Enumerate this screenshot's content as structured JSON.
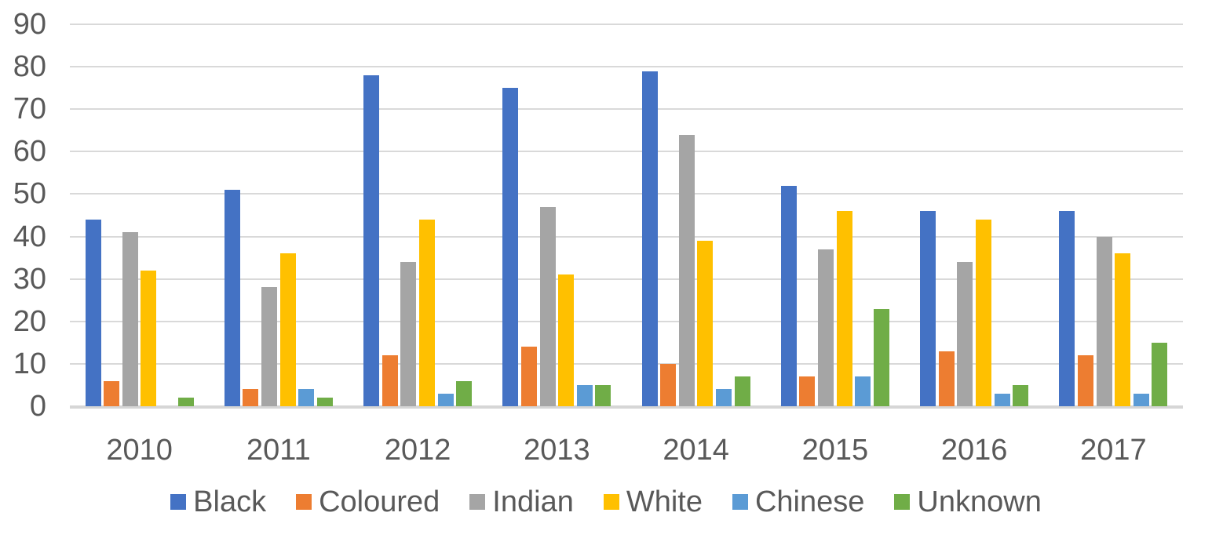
{
  "chart_data": {
    "type": "bar",
    "title": "",
    "xlabel": "",
    "ylabel": "",
    "categories": [
      "2010",
      "2011",
      "2012",
      "2013",
      "2014",
      "2015",
      "2016",
      "2017"
    ],
    "series": [
      {
        "name": "Black",
        "color": "#4472C4",
        "values": [
          44,
          51,
          78,
          75,
          79,
          52,
          46,
          46
        ]
      },
      {
        "name": "Coloured",
        "color": "#ED7D31",
        "values": [
          6,
          4,
          12,
          14,
          10,
          7,
          13,
          12
        ]
      },
      {
        "name": "Indian",
        "color": "#A5A5A5",
        "values": [
          41,
          28,
          34,
          47,
          64,
          37,
          34,
          40
        ]
      },
      {
        "name": "White",
        "color": "#FFC000",
        "values": [
          32,
          36,
          44,
          31,
          39,
          46,
          44,
          36
        ]
      },
      {
        "name": "Chinese",
        "color": "#5B9BD5",
        "values": [
          0,
          4,
          3,
          5,
          4,
          7,
          3,
          3
        ]
      },
      {
        "name": "Unknown",
        "color": "#70AD47",
        "values": [
          2,
          2,
          6,
          5,
          7,
          23,
          5,
          15
        ]
      }
    ],
    "ylim": [
      0,
      90
    ],
    "yticks": [
      0,
      10,
      20,
      30,
      40,
      50,
      60,
      70,
      80,
      90
    ],
    "grid": true,
    "legend_position": "bottom"
  },
  "colors": {
    "axis_text": "#595959",
    "gridline": "#D9D9D9",
    "background": "#FFFFFF"
  }
}
